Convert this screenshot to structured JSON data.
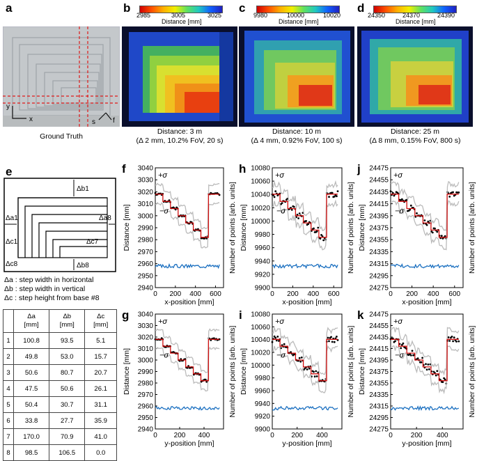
{
  "panel_labels": {
    "a": "a",
    "b": "b",
    "c": "c",
    "d": "d",
    "e": "e",
    "f": "f",
    "g": "g",
    "h": "h",
    "i": "i",
    "j": "j",
    "k": "k"
  },
  "panel_a": {
    "caption": "Ground Truth",
    "axis_x": "x",
    "axis_y": "y",
    "axis_s": "s",
    "axis_f": "f"
  },
  "colorbars": [
    {
      "min": "2985",
      "mid": "3005",
      "max": "3025",
      "label": "Distance [mm]"
    },
    {
      "min": "9980",
      "mid": "10000",
      "max": "10020",
      "label": "Distance [mm]"
    },
    {
      "min": "24350",
      "mid": "24370",
      "max": "24390",
      "label": "Distance [mm]"
    }
  ],
  "captions": [
    {
      "line1": "Distance: 3 m",
      "line2": "(Δ 2 mm, 10.2% FoV, 20 s)"
    },
    {
      "line1": "Distance: 10 m",
      "line2": "(Δ 4 mm, 0.92% FoV, 100 s)"
    },
    {
      "line1": "Distance: 25 m",
      "line2": "(Δ 8 mm, 0.15% FoV, 800 s)"
    }
  ],
  "diagram_e": {
    "a1": "Δa1",
    "b1": "Δb1",
    "a8": "Δa8",
    "c1": "Δc1",
    "c7": "Δc7",
    "c8": "Δc8",
    "b8": "Δb8"
  },
  "legend_e": [
    "Δa : step width in horizontal",
    "Δb : step width in vertical",
    "Δc : step height from base #8"
  ],
  "step_table": {
    "headers": [
      {
        "sym": "Δa",
        "unit": "[mm]"
      },
      {
        "sym": "Δb",
        "unit": "[mm]"
      },
      {
        "sym": "Δc",
        "unit": "[mm]"
      }
    ],
    "rows": [
      [
        "1",
        "100.8",
        "93.5",
        "5.1"
      ],
      [
        "2",
        "49.8",
        "53.0",
        "15.7"
      ],
      [
        "3",
        "50.6",
        "80.7",
        "20.7"
      ],
      [
        "4",
        "47.5",
        "50.6",
        "26.1"
      ],
      [
        "5",
        "50.4",
        "30.7",
        "31.1"
      ],
      [
        "6",
        "33.8",
        "27.7",
        "35.9"
      ],
      [
        "7",
        "170.0",
        "70.9",
        "41.0"
      ],
      [
        "8",
        "98.5",
        "106.5",
        "0.0"
      ]
    ]
  },
  "chart_data": [
    {
      "panel": "f",
      "type": "scatter",
      "xlabel": "x-position [mm]",
      "ylabel": "Distance [mm]",
      "ylabel2": "Number of points [arb. units]",
      "xlim": [
        0,
        680
      ],
      "xticks": [
        "0",
        "200",
        "400",
        "600"
      ],
      "ylim": [
        2940,
        3040
      ],
      "yticks": [
        "3040",
        "3030",
        "3020",
        "3010",
        "3000",
        "2990",
        "2980",
        "2970",
        "2960",
        "2950",
        "2940"
      ],
      "plus_sigma": "+σ",
      "minus_sigma": "−σ"
    },
    {
      "panel": "h",
      "type": "scatter",
      "xlabel": "x-position [mm]",
      "ylabel": "Distance [mm]",
      "ylabel2": "Number of points [arb. units]",
      "xlim": [
        0,
        680
      ],
      "xticks": [
        "0",
        "200",
        "400",
        "600"
      ],
      "ylim": [
        9900,
        10080
      ],
      "yticks": [
        "10080",
        "10060",
        "10040",
        "10020",
        "10000",
        "9980",
        "9960",
        "9940",
        "9920",
        "9900"
      ],
      "plus_sigma": "+σ",
      "minus_sigma": "−σ"
    },
    {
      "panel": "j",
      "type": "scatter",
      "xlabel": "x-position [mm]",
      "ylabel": "Distance [mm]",
      "ylabel2": "Number of points [arb. units]",
      "xlim": [
        0,
        680
      ],
      "xticks": [
        "0",
        "200",
        "400",
        "600"
      ],
      "ylim": [
        24275,
        24475
      ],
      "yticks": [
        "24475",
        "24455",
        "24435",
        "24415",
        "24395",
        "24375",
        "24355",
        "24335",
        "24315",
        "24295",
        "24275"
      ],
      "plus_sigma": "+σ",
      "minus_sigma": "−σ"
    },
    {
      "panel": "g",
      "type": "scatter",
      "xlabel": "y-position [mm]",
      "ylabel": "Distance [mm]",
      "ylabel2": "Number of points [arb. units]",
      "xlim": [
        0,
        560
      ],
      "xticks": [
        "0",
        "200",
        "400"
      ],
      "ylim": [
        2940,
        3040
      ],
      "yticks": [
        "3040",
        "3030",
        "3020",
        "3010",
        "3000",
        "2990",
        "2980",
        "2970",
        "2960",
        "2950",
        "2940"
      ],
      "plus_sigma": "+σ",
      "minus_sigma": "−σ"
    },
    {
      "panel": "i",
      "type": "scatter",
      "xlabel": "y-position [mm]",
      "ylabel": "Distance [mm]",
      "ylabel2": "Number of points [arb. units]",
      "xlim": [
        0,
        560
      ],
      "xticks": [
        "0",
        "200",
        "400"
      ],
      "ylim": [
        9900,
        10080
      ],
      "yticks": [
        "10080",
        "10060",
        "10040",
        "10020",
        "10000",
        "9980",
        "9960",
        "9940",
        "9920",
        "9900"
      ],
      "plus_sigma": "+σ",
      "minus_sigma": "−σ"
    },
    {
      "panel": "k",
      "type": "scatter",
      "xlabel": "y-position [mm]",
      "ylabel": "Distance [mm]",
      "ylabel2": "Number of points [arb. units]",
      "xlim": [
        0,
        560
      ],
      "xticks": [
        "0",
        "200",
        "400"
      ],
      "ylim": [
        24275,
        24475
      ],
      "yticks": [
        "24475",
        "24455",
        "24435",
        "24415",
        "24395",
        "24375",
        "24355",
        "24335",
        "24315",
        "24295",
        "24275"
      ],
      "plus_sigma": "+σ",
      "minus_sigma": "−σ"
    }
  ]
}
